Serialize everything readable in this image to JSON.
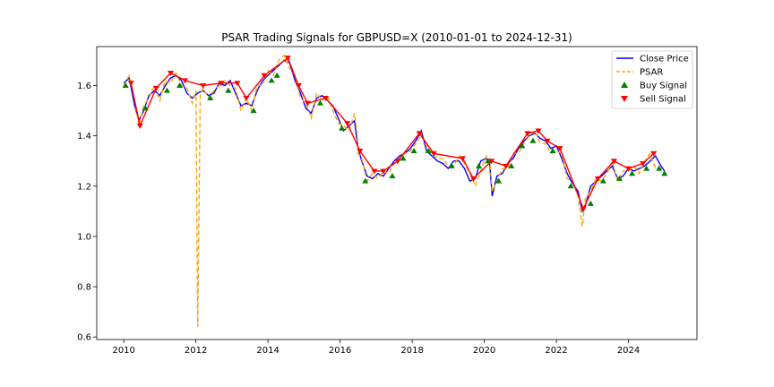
{
  "chart_data": {
    "type": "line",
    "title": "PSAR Trading Signals for GBPUSD=X (2010-01-01 to 2024-12-31)",
    "xlabel": "",
    "ylabel": "",
    "xlim": [
      2009.25,
      2025.9
    ],
    "ylim": [
      0.59,
      1.755
    ],
    "x_ticks": [
      2010,
      2012,
      2014,
      2016,
      2018,
      2020,
      2022,
      2024
    ],
    "x_tick_labels": [
      "2010",
      "2012",
      "2014",
      "2016",
      "2018",
      "2020",
      "2022",
      "2024"
    ],
    "y_ticks": [
      0.6,
      0.8,
      1.0,
      1.2,
      1.4,
      1.6
    ],
    "y_tick_labels": [
      "0.6",
      "0.8",
      "1.0",
      "1.2",
      "1.4",
      "1.6"
    ],
    "grid": false,
    "legend": {
      "placement": "top-right",
      "entries": [
        {
          "label": "Close Price",
          "style": "line",
          "color": "#0000ff"
        },
        {
          "label": "PSAR",
          "style": "dashed",
          "color": "#ffa500"
        },
        {
          "label": "Buy Signal",
          "style": "triangle-up",
          "color": "#008000"
        },
        {
          "label": "Sell Signal",
          "style": "triangle-down",
          "color": "#ff0000"
        }
      ]
    },
    "series": [
      {
        "name": "Close Price",
        "color": "#0000ff",
        "x": [
          2010.0,
          2010.15,
          2010.3,
          2010.42,
          2010.55,
          2010.7,
          2010.85,
          2011.0,
          2011.15,
          2011.3,
          2011.45,
          2011.6,
          2011.75,
          2011.9,
          2012.05,
          2012.2,
          2012.35,
          2012.5,
          2012.65,
          2012.8,
          2012.95,
          2013.1,
          2013.25,
          2013.4,
          2013.55,
          2013.7,
          2013.85,
          2014.0,
          2014.15,
          2014.3,
          2014.45,
          2014.6,
          2014.75,
          2014.9,
          2015.05,
          2015.2,
          2015.35,
          2015.5,
          2015.65,
          2015.8,
          2015.95,
          2016.1,
          2016.25,
          2016.4,
          2016.5,
          2016.6,
          2016.75,
          2016.9,
          2017.05,
          2017.2,
          2017.35,
          2017.5,
          2017.65,
          2017.8,
          2017.95,
          2018.1,
          2018.25,
          2018.4,
          2018.55,
          2018.7,
          2018.85,
          2019.0,
          2019.15,
          2019.3,
          2019.45,
          2019.6,
          2019.75,
          2019.9,
          2020.05,
          2020.15,
          2020.22,
          2020.35,
          2020.5,
          2020.65,
          2020.8,
          2020.95,
          2021.1,
          2021.25,
          2021.4,
          2021.55,
          2021.7,
          2021.85,
          2022.0,
          2022.15,
          2022.3,
          2022.45,
          2022.6,
          2022.72,
          2022.8,
          2022.95,
          2023.1,
          2023.25,
          2023.4,
          2023.55,
          2023.7,
          2023.85,
          2024.0,
          2024.15,
          2024.3,
          2024.45,
          2024.6,
          2024.75,
          2024.9,
          2025.0
        ],
        "y": [
          1.61,
          1.63,
          1.52,
          1.46,
          1.5,
          1.56,
          1.58,
          1.56,
          1.6,
          1.63,
          1.64,
          1.62,
          1.57,
          1.55,
          1.57,
          1.58,
          1.56,
          1.57,
          1.61,
          1.6,
          1.62,
          1.57,
          1.52,
          1.53,
          1.52,
          1.58,
          1.62,
          1.64,
          1.66,
          1.68,
          1.7,
          1.69,
          1.62,
          1.57,
          1.51,
          1.49,
          1.55,
          1.56,
          1.54,
          1.52,
          1.47,
          1.42,
          1.44,
          1.46,
          1.35,
          1.3,
          1.24,
          1.23,
          1.25,
          1.24,
          1.27,
          1.3,
          1.32,
          1.33,
          1.35,
          1.38,
          1.42,
          1.34,
          1.32,
          1.3,
          1.29,
          1.27,
          1.3,
          1.3,
          1.27,
          1.22,
          1.23,
          1.3,
          1.31,
          1.29,
          1.16,
          1.24,
          1.25,
          1.29,
          1.31,
          1.35,
          1.38,
          1.4,
          1.41,
          1.39,
          1.38,
          1.35,
          1.36,
          1.31,
          1.25,
          1.21,
          1.18,
          1.1,
          1.12,
          1.2,
          1.22,
          1.24,
          1.26,
          1.28,
          1.23,
          1.24,
          1.27,
          1.26,
          1.27,
          1.28,
          1.3,
          1.32,
          1.28,
          1.26
        ]
      },
      {
        "name": "PSAR",
        "color": "#ffa500",
        "x": [
          2010.0,
          2010.15,
          2010.3,
          2010.42,
          2010.55,
          2010.7,
          2010.85,
          2011.0,
          2011.15,
          2011.3,
          2011.45,
          2011.6,
          2011.75,
          2011.9,
          2012.0,
          2012.05,
          2012.12,
          2012.2,
          2012.35,
          2012.5,
          2012.65,
          2012.8,
          2012.95,
          2013.1,
          2013.25,
          2013.4,
          2013.55,
          2013.7,
          2013.85,
          2014.0,
          2014.15,
          2014.3,
          2014.45,
          2014.6,
          2014.75,
          2014.9,
          2015.05,
          2015.2,
          2015.35,
          2015.5,
          2015.65,
          2015.8,
          2015.95,
          2016.1,
          2016.25,
          2016.4,
          2016.48,
          2016.5,
          2016.6,
          2016.75,
          2016.9,
          2017.05,
          2017.2,
          2017.35,
          2017.5,
          2017.65,
          2017.8,
          2017.95,
          2018.1,
          2018.25,
          2018.4,
          2018.55,
          2018.7,
          2018.85,
          2019.0,
          2019.15,
          2019.3,
          2019.45,
          2019.6,
          2019.75,
          2019.9,
          2020.05,
          2020.15,
          2020.22,
          2020.35,
          2020.5,
          2020.65,
          2020.8,
          2020.95,
          2021.1,
          2021.25,
          2021.4,
          2021.55,
          2021.7,
          2021.85,
          2022.0,
          2022.15,
          2022.3,
          2022.45,
          2022.6,
          2022.72,
          2022.8,
          2022.95,
          2023.1,
          2023.25,
          2023.4,
          2023.55,
          2023.7,
          2023.85,
          2024.0,
          2024.15,
          2024.3,
          2024.45,
          2024.6,
          2024.75,
          2024.9,
          2025.0
        ],
        "y": [
          1.6,
          1.64,
          1.54,
          1.44,
          1.52,
          1.55,
          1.6,
          1.54,
          1.62,
          1.61,
          1.65,
          1.6,
          1.59,
          1.53,
          1.58,
          0.64,
          1.56,
          1.59,
          1.55,
          1.58,
          1.6,
          1.62,
          1.6,
          1.59,
          1.5,
          1.55,
          1.5,
          1.6,
          1.6,
          1.66,
          1.64,
          1.7,
          1.72,
          1.67,
          1.64,
          1.55,
          1.53,
          1.47,
          1.57,
          1.54,
          1.56,
          1.5,
          1.45,
          1.44,
          1.42,
          1.49,
          1.4,
          1.33,
          1.31,
          1.22,
          1.25,
          1.23,
          1.26,
          1.25,
          1.29,
          1.31,
          1.33,
          1.34,
          1.37,
          1.4,
          1.36,
          1.33,
          1.31,
          1.31,
          1.28,
          1.28,
          1.32,
          1.29,
          1.25,
          1.2,
          1.26,
          1.32,
          1.31,
          1.18,
          1.22,
          1.27,
          1.27,
          1.33,
          1.33,
          1.37,
          1.4,
          1.42,
          1.37,
          1.37,
          1.33,
          1.34,
          1.33,
          1.23,
          1.22,
          1.16,
          1.04,
          1.15,
          1.18,
          1.23,
          1.22,
          1.25,
          1.3,
          1.22,
          1.26,
          1.26,
          1.28,
          1.25,
          1.3,
          1.33,
          1.27,
          1.27,
          1.25
        ]
      },
      {
        "name": "Buy Signal",
        "color": "#008000",
        "marker": "triangle-up",
        "x": [
          2010.05,
          2010.6,
          2011.2,
          2011.55,
          2012.4,
          2012.9,
          2013.6,
          2014.1,
          2014.25,
          2015.45,
          2016.05,
          2016.7,
          2017.45,
          2017.75,
          2018.05,
          2018.45,
          2019.1,
          2019.85,
          2020.1,
          2020.4,
          2020.75,
          2021.05,
          2021.35,
          2021.9,
          2022.4,
          2022.95,
          2023.3,
          2023.75,
          2024.1,
          2024.5,
          2024.85,
          2025.0
        ],
        "y": [
          1.6,
          1.51,
          1.58,
          1.6,
          1.55,
          1.58,
          1.5,
          1.62,
          1.64,
          1.53,
          1.43,
          1.22,
          1.24,
          1.31,
          1.34,
          1.34,
          1.28,
          1.28,
          1.3,
          1.22,
          1.28,
          1.36,
          1.38,
          1.34,
          1.2,
          1.13,
          1.22,
          1.23,
          1.25,
          1.27,
          1.27,
          1.25
        ]
      },
      {
        "name": "Sell Signal",
        "color": "#ff0000",
        "x": [
          2010.2,
          2010.45,
          2010.9,
          2011.3,
          2011.7,
          2012.2,
          2012.7,
          2013.15,
          2013.4,
          2013.9,
          2014.55,
          2014.85,
          2015.1,
          2015.6,
          2016.2,
          2016.55,
          2016.95,
          2017.2,
          2017.6,
          2018.2,
          2018.6,
          2019.4,
          2019.7,
          2020.2,
          2020.6,
          2021.2,
          2021.5,
          2021.75,
          2022.1,
          2022.75,
          2023.15,
          2023.6,
          2024.0,
          2024.4,
          2024.7
        ],
        "y": [
          1.61,
          1.44,
          1.59,
          1.65,
          1.62,
          1.6,
          1.61,
          1.61,
          1.55,
          1.64,
          1.71,
          1.6,
          1.53,
          1.55,
          1.45,
          1.34,
          1.26,
          1.26,
          1.3,
          1.41,
          1.33,
          1.31,
          1.23,
          1.3,
          1.28,
          1.41,
          1.42,
          1.38,
          1.35,
          1.11,
          1.23,
          1.3,
          1.27,
          1.29,
          1.33
        ]
      }
    ]
  }
}
